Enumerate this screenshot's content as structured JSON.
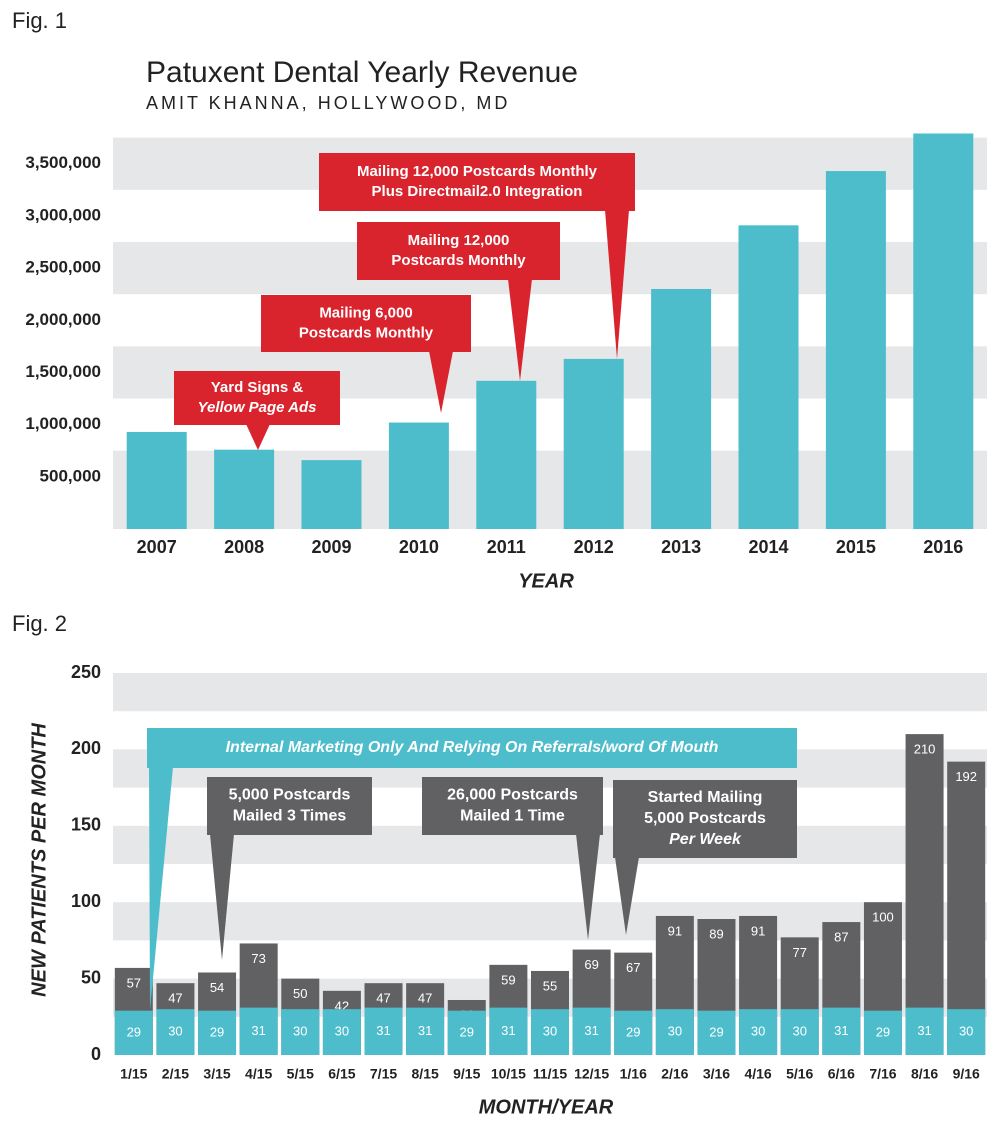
{
  "chart_data": [
    {
      "type": "bar",
      "label": "Fig. 1",
      "title": "Patuxent Dental Yearly Revenue",
      "subtitle": "AMIT KHANNA, HOLLYWOOD, MD",
      "x_label": "YEAR",
      "categories": [
        "2007",
        "2008",
        "2009",
        "2010",
        "2011",
        "2012",
        "2013",
        "2014",
        "2015",
        "2016"
      ],
      "values": [
        930000,
        760000,
        660000,
        1020000,
        1420000,
        1630000,
        2300000,
        2910000,
        3430000,
        3790000
      ],
      "color": "#4dbdcc",
      "ylim": [
        0,
        3900000
      ],
      "yticks": [
        {
          "value": 500000,
          "label": "500,000"
        },
        {
          "value": 1000000,
          "label": "1,000,000"
        },
        {
          "value": 1500000,
          "label": "1,500,000"
        },
        {
          "value": 2000000,
          "label": "2,000,000"
        },
        {
          "value": 2500000,
          "label": "2,500,000"
        },
        {
          "value": 3000000,
          "label": "3,000,000"
        },
        {
          "value": 3500000,
          "label": "3,500,000"
        }
      ],
      "grid": true,
      "annotations": [
        [
          "Yard Signs &",
          "Yellow Page Ads"
        ],
        [
          "Mailing 6,000",
          "Postcards Monthly"
        ],
        [
          "Mailing 12,000",
          "Postcards Monthly"
        ],
        [
          "Mailing 12,000 Postcards Monthly",
          "Plus Directmail2.0 Integration"
        ]
      ]
    },
    {
      "type": "overlay_bar",
      "label": "Fig. 2",
      "x_label": "MONTH/YEAR",
      "y_label": "NEW PATIENTS PER MONTH",
      "categories": [
        "1/15",
        "2/15",
        "3/15",
        "4/15",
        "5/15",
        "6/15",
        "7/15",
        "8/15",
        "9/15",
        "10/15",
        "11/15",
        "12/15",
        "1/16",
        "2/16",
        "3/16",
        "4/16",
        "5/16",
        "6/16",
        "7/16",
        "8/16",
        "9/16"
      ],
      "series": [
        {
          "color": "#616163",
          "values": [
            57,
            47,
            54,
            73,
            50,
            42,
            47,
            47,
            36,
            59,
            55,
            69,
            67,
            91,
            89,
            91,
            77,
            87,
            100,
            210,
            192
          ]
        },
        {
          "color": "#4dbdcc",
          "values": [
            29,
            30,
            29,
            31,
            30,
            30,
            31,
            31,
            29,
            31,
            30,
            31,
            29,
            30,
            29,
            30,
            30,
            31,
            29,
            31,
            30
          ]
        }
      ],
      "ylim": [
        0,
        250
      ],
      "yticks": [
        0,
        50,
        100,
        150,
        200,
        250
      ],
      "grid": true,
      "annotations": [
        [
          "Internal Marketing Only And Relying On Referrals/word Of Mouth"
        ],
        [
          "5,000 Postcards",
          "Mailed 3 Times"
        ],
        [
          "26,000 Postcards",
          "Mailed 1 Time"
        ],
        [
          "Started Mailing",
          "5,000 Postcards",
          "Per Week"
        ]
      ]
    }
  ]
}
